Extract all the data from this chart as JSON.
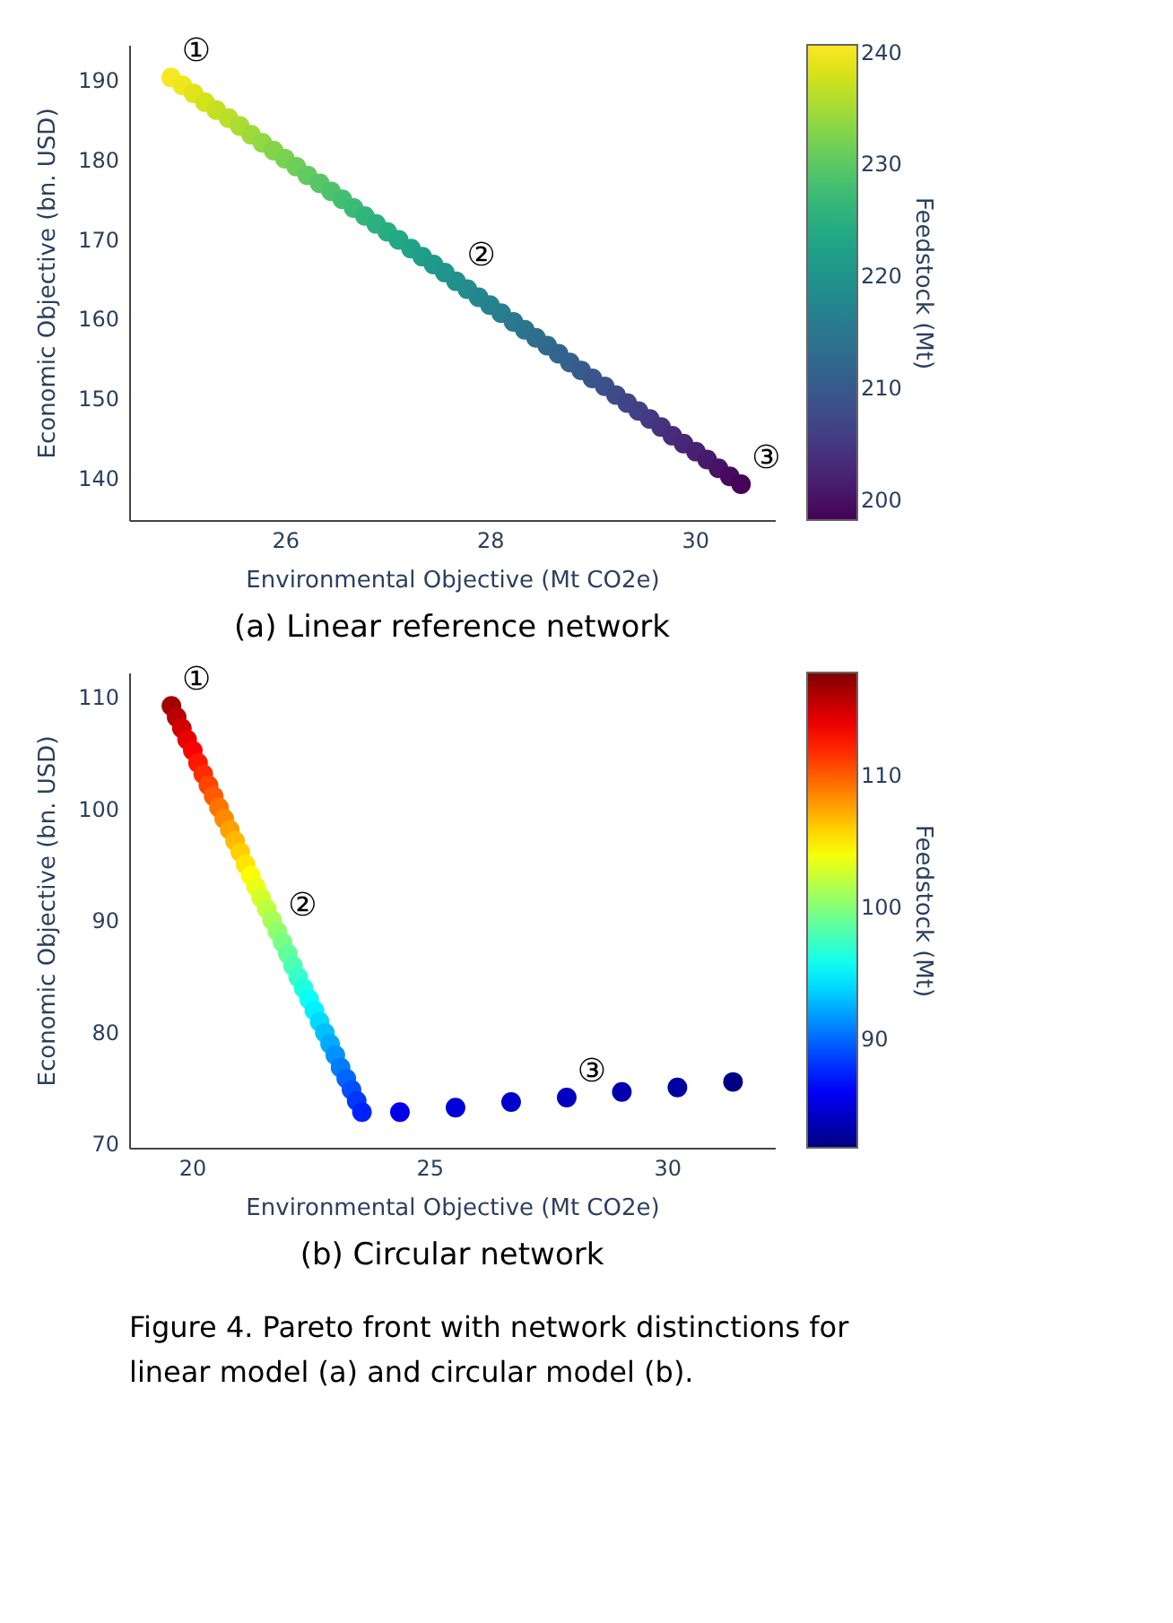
{
  "chart_data": [
    {
      "type": "scatter",
      "title": "(a)   Linear reference network",
      "xlabel": "Environmental Objective (Mt CO2e)",
      "ylabel": "Economic Objective (bn. USD)",
      "clabel": "Feedstock (Mt)",
      "marker": "circle",
      "xlim": [
        24.48,
        30.78
      ],
      "xticks": [
        26,
        28,
        30
      ],
      "ylim": [
        134.7,
        194.4
      ],
      "yticks": [
        140,
        150,
        160,
        170,
        180,
        190
      ],
      "clim": [
        198.2,
        240.7
      ],
      "cticks": [
        200,
        210,
        220,
        230,
        240
      ],
      "x": [
        24.89,
        25.0,
        25.11,
        25.22,
        25.33,
        25.45,
        25.56,
        25.67,
        25.78,
        25.89,
        26.0,
        26.11,
        26.22,
        26.34,
        26.45,
        26.56,
        26.67,
        26.78,
        26.89,
        27.0,
        27.11,
        27.23,
        27.34,
        27.45,
        27.56,
        27.67,
        27.78,
        27.89,
        28.0,
        28.11,
        28.23,
        28.34,
        28.45,
        28.56,
        28.67,
        28.78,
        28.89,
        29.0,
        29.12,
        29.23,
        29.34,
        29.45,
        29.56,
        29.67,
        29.78,
        29.89,
        30.01,
        30.12,
        30.23,
        30.34,
        30.45
      ],
      "values": [
        190.3,
        189.3,
        188.3,
        187.2,
        186.2,
        185.2,
        184.2,
        183.1,
        182.1,
        181.1,
        180.1,
        179.1,
        178.0,
        177.0,
        176.0,
        175.0,
        173.9,
        172.9,
        171.9,
        170.9,
        169.9,
        168.8,
        167.8,
        166.8,
        165.8,
        164.7,
        163.7,
        162.7,
        161.7,
        160.7,
        159.6,
        158.6,
        157.6,
        156.6,
        155.6,
        154.5,
        153.5,
        152.5,
        151.5,
        150.4,
        149.4,
        148.4,
        147.4,
        146.4,
        145.3,
        144.3,
        143.3,
        142.3,
        141.2,
        140.2,
        139.2
      ],
      "cvalues": [
        240.5,
        239.7,
        238.8,
        238.0,
        237.1,
        236.3,
        235.5,
        234.6,
        233.8,
        232.9,
        232.1,
        231.3,
        230.4,
        229.6,
        228.7,
        227.9,
        227.1,
        226.2,
        225.4,
        224.5,
        223.7,
        222.9,
        222.0,
        221.2,
        220.3,
        219.5,
        218.7,
        217.8,
        217.0,
        216.1,
        215.3,
        214.5,
        213.6,
        212.8,
        211.9,
        211.1,
        210.3,
        209.4,
        208.6,
        207.7,
        206.9,
        206.1,
        205.2,
        204.4,
        203.5,
        202.7,
        201.9,
        201.0,
        200.2,
        199.3,
        198.5
      ],
      "annotations": [
        {
          "text": "①",
          "x": 24.89,
          "y": 190.3
        },
        {
          "text": "②",
          "x": 27.67,
          "y": 164.7
        },
        {
          "text": "③",
          "x": 30.45,
          "y": 139.2
        }
      ]
    },
    {
      "type": "scatter",
      "title": "(b)   Circular network",
      "xlabel": "Environmental Objective (Mt CO2e)",
      "ylabel": "Economic Objective (bn. USD)",
      "clabel": "Feedstock (Mt)",
      "marker": "circle",
      "xlim": [
        18.68,
        32.27
      ],
      "xticks": [
        20,
        25,
        30
      ],
      "ylim": [
        69.6,
        112.2
      ],
      "yticks": [
        70,
        80,
        90,
        100,
        110
      ],
      "clim": [
        81.8,
        117.8
      ],
      "cticks": [
        90,
        100,
        110
      ],
      "x": [
        19.57,
        19.68,
        19.79,
        19.9,
        20.02,
        20.13,
        20.24,
        20.35,
        20.46,
        20.57,
        20.68,
        20.8,
        20.91,
        21.02,
        21.13,
        21.24,
        21.35,
        21.46,
        21.58,
        21.69,
        21.8,
        21.91,
        22.02,
        22.13,
        22.24,
        22.35,
        22.47,
        22.58,
        22.69,
        22.8,
        22.91,
        23.02,
        23.13,
        23.25,
        23.36,
        23.47,
        23.58,
        24.38,
        25.55,
        26.72,
        27.89,
        29.05,
        30.22,
        31.39
      ],
      "values": [
        109.2,
        108.2,
        107.2,
        106.2,
        105.2,
        104.1,
        103.1,
        102.1,
        101.1,
        100.1,
        99.1,
        98.1,
        97.1,
        96.1,
        95.0,
        94.0,
        93.0,
        92.0,
        91.0,
        90.0,
        89.0,
        88.0,
        87.0,
        85.9,
        84.9,
        83.9,
        82.9,
        81.9,
        80.9,
        79.9,
        78.9,
        77.9,
        76.8,
        75.8,
        74.8,
        73.8,
        72.8,
        72.8,
        73.2,
        73.7,
        74.1,
        74.6,
        75.0,
        75.5
      ],
      "cvalues": [
        116.5,
        115.7,
        114.9,
        114.1,
        113.3,
        112.5,
        111.7,
        110.9,
        110.1,
        109.2,
        108.4,
        107.6,
        106.8,
        106.0,
        105.2,
        104.4,
        103.6,
        102.8,
        102.0,
        101.2,
        100.4,
        99.6,
        98.8,
        98.0,
        97.2,
        96.4,
        95.6,
        94.8,
        94.0,
        93.1,
        92.3,
        91.5,
        90.7,
        89.9,
        89.1,
        88.3,
        87.5,
        85.5,
        85.0,
        84.5,
        84.0,
        83.5,
        83.0,
        82.0
      ],
      "annotations": [
        {
          "text": "①",
          "x": 19.57,
          "y": 109.2
        },
        {
          "text": "②",
          "x": 21.8,
          "y": 89.0
        },
        {
          "text": "③",
          "x": 27.89,
          "y": 74.1
        },
        "Figure 4. Pareto front with network distinctions for linear model (a) and circular model (b)."
      ]
    }
  ]
}
